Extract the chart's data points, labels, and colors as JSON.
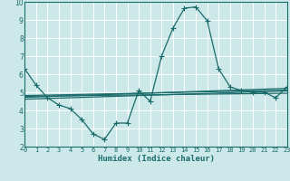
{
  "bg_color": "#cce8e8",
  "grid_color": "#aacccc",
  "line_color": "#1a6b6b",
  "x_min": 0,
  "x_max": 23,
  "y_min": 2,
  "y_max": 10,
  "xlabel": "Humidex (Indice chaleur)",
  "xticks": [
    0,
    1,
    2,
    3,
    4,
    5,
    6,
    7,
    8,
    9,
    10,
    11,
    12,
    13,
    14,
    15,
    16,
    17,
    18,
    19,
    20,
    21,
    22,
    23
  ],
  "yticks": [
    2,
    3,
    4,
    5,
    6,
    7,
    8,
    9,
    10
  ],
  "main_curve_x": [
    0,
    1,
    2,
    3,
    4,
    5,
    6,
    7,
    8,
    9,
    10,
    11,
    12,
    13,
    14,
    15,
    16,
    17,
    18,
    19,
    20,
    21,
    22,
    23
  ],
  "main_curve_y": [
    6.3,
    5.4,
    4.7,
    4.3,
    4.1,
    3.5,
    2.7,
    2.4,
    3.3,
    3.3,
    5.1,
    4.5,
    7.0,
    8.55,
    9.65,
    9.72,
    8.95,
    6.3,
    5.3,
    5.1,
    5.0,
    5.0,
    4.7,
    5.3
  ],
  "trend1_x": [
    0,
    23
  ],
  "trend1_y": [
    4.82,
    5.12
  ],
  "trend2_x": [
    0,
    23
  ],
  "trend2_y": [
    4.72,
    5.22
  ],
  "trend3_x": [
    0,
    23
  ],
  "trend3_y": [
    4.62,
    5.08
  ],
  "trend4_x": [
    0,
    23
  ],
  "trend4_y": [
    4.78,
    4.95
  ]
}
